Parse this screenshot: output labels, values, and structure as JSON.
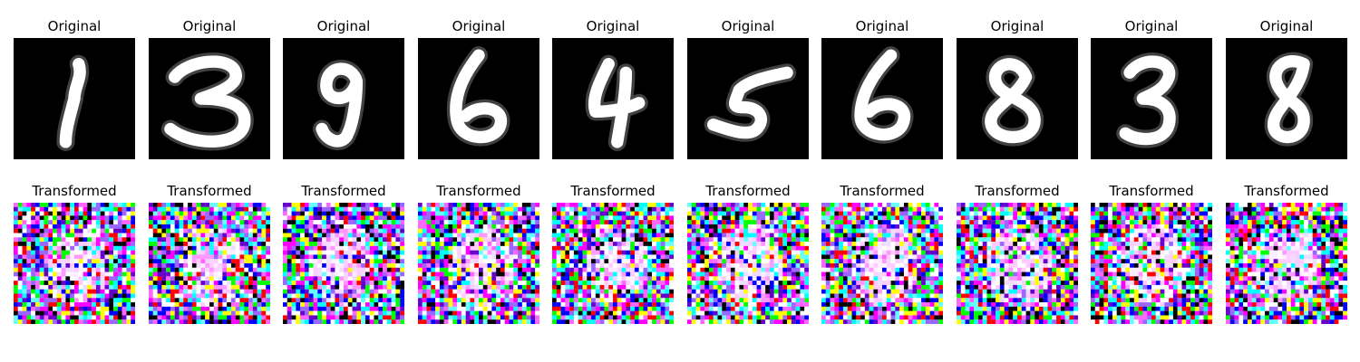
{
  "top_row": {
    "panel_title": "Original",
    "digits": [
      "1",
      "3",
      "9",
      "6",
      "4",
      "5",
      "6",
      "8",
      "3",
      "8"
    ],
    "background_color": "#000000",
    "stroke_color": "#ffffff"
  },
  "bottom_row": {
    "panel_title": "Transformed",
    "palette": [
      "#000000",
      "#ff0000",
      "#00ff00",
      "#0000ff",
      "#ff00ff",
      "#00ffff",
      "#ffff00",
      "#ffffff",
      "#ff66ff",
      "#6600cc",
      "#66ffff",
      "#9966ff"
    ]
  }
}
